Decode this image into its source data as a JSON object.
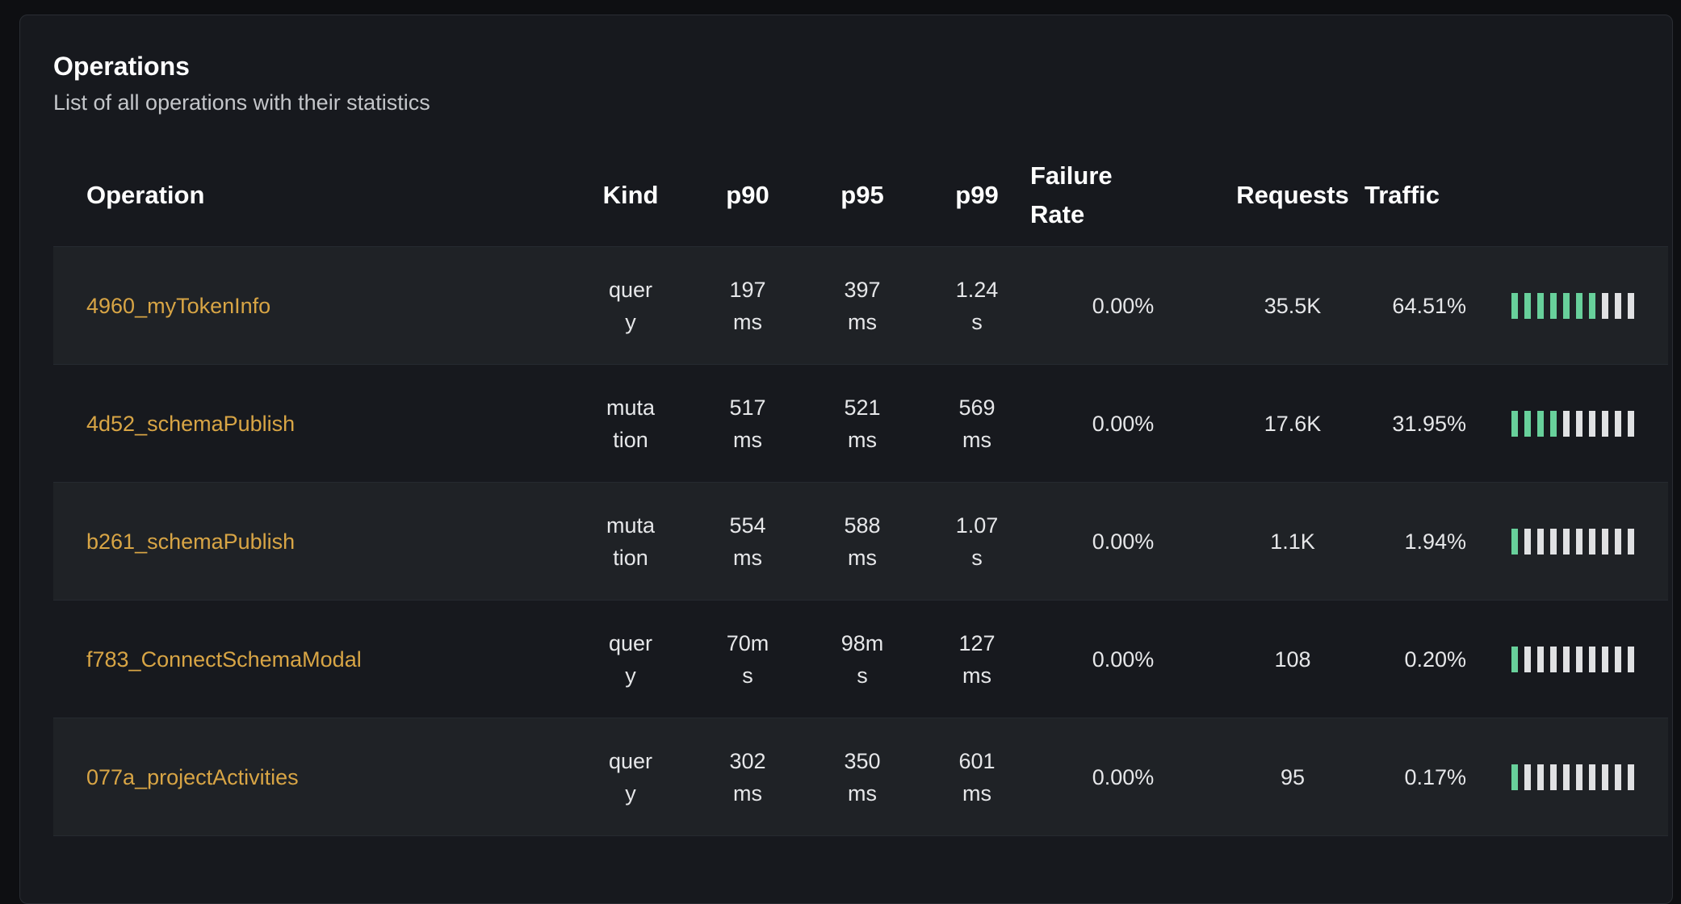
{
  "panel": {
    "title": "Operations",
    "subtitle": "List of all operations with their statistics"
  },
  "columns": {
    "operation": "Operation",
    "kind": "Kind",
    "p90": "p90",
    "p95": "p95",
    "p99": "p99",
    "failure_rate": "Failure Rate",
    "requests": "Requests",
    "traffic": "Traffic"
  },
  "colors": {
    "operation_link": "#d8a545",
    "traffic_filled": "#68d09b",
    "traffic_empty": "#e0e1e3"
  },
  "rows": [
    {
      "operation": "4960_myTokenInfo",
      "kind": "query",
      "p90": "197 ms",
      "p95": "397 ms",
      "p99": "1.24 s",
      "failure_rate": "0.00%",
      "requests": "35.5K",
      "traffic": "64.51%",
      "traffic_pct": 64.51
    },
    {
      "operation": "4d52_schemaPublish",
      "kind": "mutation",
      "p90": "517 ms",
      "p95": "521 ms",
      "p99": "569 ms",
      "failure_rate": "0.00%",
      "requests": "17.6K",
      "traffic": "31.95%",
      "traffic_pct": 31.95
    },
    {
      "operation": "b261_schemaPublish",
      "kind": "mutation",
      "p90": "554 ms",
      "p95": "588 ms",
      "p99": "1.07 s",
      "failure_rate": "0.00%",
      "requests": "1.1K",
      "traffic": "1.94%",
      "traffic_pct": 1.94
    },
    {
      "operation": "f783_ConnectSchemaModal",
      "kind": "query",
      "p90": "70ms",
      "p95": "98ms",
      "p99": "127 ms",
      "failure_rate": "0.00%",
      "requests": "108",
      "traffic": "0.20%",
      "traffic_pct": 0.2
    },
    {
      "operation": "077a_projectActivities",
      "kind": "query",
      "p90": "302 ms",
      "p95": "350 ms",
      "p99": "601 ms",
      "failure_rate": "0.00%",
      "requests": "95",
      "traffic": "0.17%",
      "traffic_pct": 0.17
    }
  ]
}
